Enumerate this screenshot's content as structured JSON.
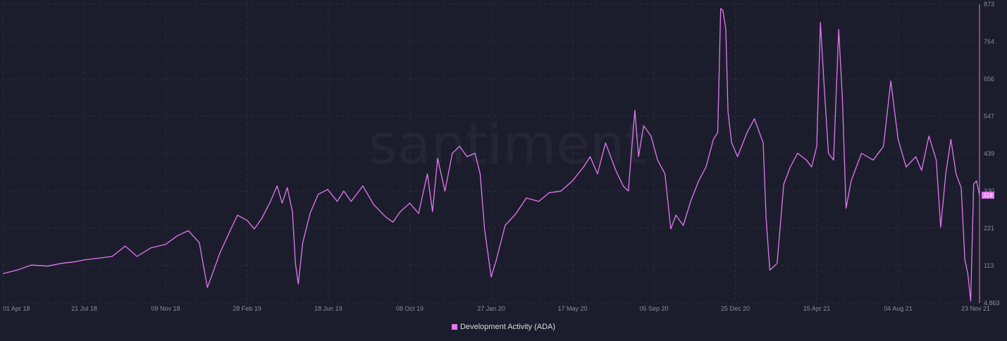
{
  "chart_data": {
    "type": "line",
    "watermark": "santiment",
    "legend_position": "bottom-center",
    "grid": true,
    "xlabel": "",
    "ylabel": "",
    "x_ticks": [
      "01 Apr 18",
      "21 Jul 18",
      "09 Nov 18",
      "28 Feb 19",
      "18 Jun 19",
      "08 Oct 19",
      "27 Jan 20",
      "17 May 20",
      "05 Sep 20",
      "25 Dec 20",
      "15 Apr 21",
      "04 Aug 21",
      "23 Nov 21"
    ],
    "y_ticks": [
      "873",
      "764",
      "656",
      "547",
      "439",
      "330",
      "221",
      "113",
      "4.863"
    ],
    "ylim": [
      4.863,
      873
    ],
    "xlim": [
      "2018-04-01",
      "2021-11-23"
    ],
    "last_value_label": "318",
    "series": [
      {
        "name": "Development Activity (ADA)",
        "color": "#e377f0",
        "points": [
          [
            "2018-04-01",
            90
          ],
          [
            "2018-04-20",
            100
          ],
          [
            "2018-05-10",
            115
          ],
          [
            "2018-06-01",
            112
          ],
          [
            "2018-06-20",
            120
          ],
          [
            "2018-07-10",
            125
          ],
          [
            "2018-07-21",
            130
          ],
          [
            "2018-08-10",
            135
          ],
          [
            "2018-08-28",
            140
          ],
          [
            "2018-09-15",
            170
          ],
          [
            "2018-10-01",
            140
          ],
          [
            "2018-10-20",
            165
          ],
          [
            "2018-11-09",
            175
          ],
          [
            "2018-11-25",
            200
          ],
          [
            "2018-12-10",
            215
          ],
          [
            "2018-12-25",
            180
          ],
          [
            "2019-01-05",
            50
          ],
          [
            "2019-01-12",
            90
          ],
          [
            "2019-01-22",
            150
          ],
          [
            "2019-02-05",
            215
          ],
          [
            "2019-02-15",
            260
          ],
          [
            "2019-02-28",
            245
          ],
          [
            "2019-03-10",
            220
          ],
          [
            "2019-03-20",
            250
          ],
          [
            "2019-04-01",
            300
          ],
          [
            "2019-04-10",
            345
          ],
          [
            "2019-04-17",
            295
          ],
          [
            "2019-04-24",
            340
          ],
          [
            "2019-05-01",
            270
          ],
          [
            "2019-05-05",
            120
          ],
          [
            "2019-05-09",
            60
          ],
          [
            "2019-05-15",
            180
          ],
          [
            "2019-05-25",
            265
          ],
          [
            "2019-06-05",
            320
          ],
          [
            "2019-06-18",
            335
          ],
          [
            "2019-07-01",
            300
          ],
          [
            "2019-07-10",
            330
          ],
          [
            "2019-07-20",
            300
          ],
          [
            "2019-08-05",
            345
          ],
          [
            "2019-08-20",
            290
          ],
          [
            "2019-09-05",
            255
          ],
          [
            "2019-09-15",
            240
          ],
          [
            "2019-09-25",
            270
          ],
          [
            "2019-10-08",
            295
          ],
          [
            "2019-10-20",
            265
          ],
          [
            "2019-11-01",
            380
          ],
          [
            "2019-11-08",
            270
          ],
          [
            "2019-11-15",
            425
          ],
          [
            "2019-11-25",
            330
          ],
          [
            "2019-12-05",
            440
          ],
          [
            "2019-12-15",
            460
          ],
          [
            "2019-12-25",
            430
          ],
          [
            "2020-01-05",
            440
          ],
          [
            "2020-01-12",
            380
          ],
          [
            "2020-01-18",
            220
          ],
          [
            "2020-01-27",
            80
          ],
          [
            "2020-02-03",
            130
          ],
          [
            "2020-02-15",
            230
          ],
          [
            "2020-03-01",
            265
          ],
          [
            "2020-03-15",
            310
          ],
          [
            "2020-04-01",
            300
          ],
          [
            "2020-04-15",
            325
          ],
          [
            "2020-05-01",
            330
          ],
          [
            "2020-05-17",
            360
          ],
          [
            "2020-06-01",
            400
          ],
          [
            "2020-06-10",
            430
          ],
          [
            "2020-06-20",
            380
          ],
          [
            "2020-07-01",
            470
          ],
          [
            "2020-07-15",
            390
          ],
          [
            "2020-07-25",
            345
          ],
          [
            "2020-08-01",
            330
          ],
          [
            "2020-08-10",
            565
          ],
          [
            "2020-08-15",
            430
          ],
          [
            "2020-08-22",
            520
          ],
          [
            "2020-09-01",
            490
          ],
          [
            "2020-09-10",
            420
          ],
          [
            "2020-09-20",
            380
          ],
          [
            "2020-09-28",
            220
          ],
          [
            "2020-10-05",
            260
          ],
          [
            "2020-10-15",
            230
          ],
          [
            "2020-10-25",
            300
          ],
          [
            "2020-11-05",
            360
          ],
          [
            "2020-11-15",
            400
          ],
          [
            "2020-11-25",
            480
          ],
          [
            "2020-12-01",
            500
          ],
          [
            "2020-12-05",
            860
          ],
          [
            "2020-12-08",
            855
          ],
          [
            "2020-12-12",
            800
          ],
          [
            "2020-12-15",
            560
          ],
          [
            "2020-12-20",
            470
          ],
          [
            "2020-12-28",
            430
          ],
          [
            "2021-01-10",
            500
          ],
          [
            "2021-01-20",
            540
          ],
          [
            "2021-02-01",
            470
          ],
          [
            "2021-02-05",
            250
          ],
          [
            "2021-02-10",
            100
          ],
          [
            "2021-02-20",
            120
          ],
          [
            "2021-03-01",
            350
          ],
          [
            "2021-03-10",
            400
          ],
          [
            "2021-03-20",
            440
          ],
          [
            "2021-04-01",
            420
          ],
          [
            "2021-04-08",
            400
          ],
          [
            "2021-04-15",
            460
          ],
          [
            "2021-04-20",
            820
          ],
          [
            "2021-04-25",
            640
          ],
          [
            "2021-05-01",
            440
          ],
          [
            "2021-05-08",
            420
          ],
          [
            "2021-05-15",
            800
          ],
          [
            "2021-05-20",
            600
          ],
          [
            "2021-05-25",
            280
          ],
          [
            "2021-06-01",
            360
          ],
          [
            "2021-06-15",
            440
          ],
          [
            "2021-07-01",
            420
          ],
          [
            "2021-07-15",
            460
          ],
          [
            "2021-07-25",
            650
          ],
          [
            "2021-08-04",
            480
          ],
          [
            "2021-08-15",
            400
          ],
          [
            "2021-08-28",
            430
          ],
          [
            "2021-09-05",
            390
          ],
          [
            "2021-09-15",
            490
          ],
          [
            "2021-09-25",
            420
          ],
          [
            "2021-10-01",
            225
          ],
          [
            "2021-10-08",
            380
          ],
          [
            "2021-10-15",
            480
          ],
          [
            "2021-10-22",
            380
          ],
          [
            "2021-10-29",
            340
          ],
          [
            "2021-11-03",
            130
          ],
          [
            "2021-11-07",
            90
          ],
          [
            "2021-11-11",
            10
          ],
          [
            "2021-11-15",
            350
          ],
          [
            "2021-11-19",
            360
          ],
          [
            "2021-11-23",
            318
          ]
        ]
      }
    ]
  }
}
